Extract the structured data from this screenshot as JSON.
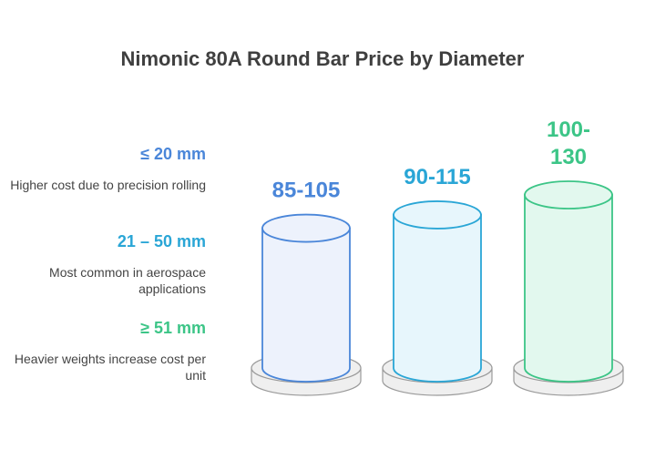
{
  "title": "Nimonic 80A Round Bar Price by Diameter",
  "chart_data": {
    "type": "bar",
    "categories": [
      "≤ 20 mm",
      "21 – 50 mm",
      "≥ 51 mm"
    ],
    "descriptions": [
      "Higher cost due to precision rolling",
      "Most common in aerospace applications",
      "Heavier weights increase cost per unit"
    ],
    "labels": [
      "85-105",
      "90-115",
      "100-130"
    ],
    "ranges": [
      [
        85,
        105
      ],
      [
        90,
        115
      ],
      [
        100,
        130
      ]
    ],
    "colors": {
      "stroke": [
        "#4a86d9",
        "#2aa6d6",
        "#3cc587"
      ],
      "fill": [
        "#edf2fc",
        "#e7f6fc",
        "#e2f8ee"
      ],
      "label": [
        "#4a86d9",
        "#2aa6d6",
        "#3cc587"
      ],
      "base_fill": "#efefef",
      "base_stroke": "#9a9a9a"
    }
  }
}
